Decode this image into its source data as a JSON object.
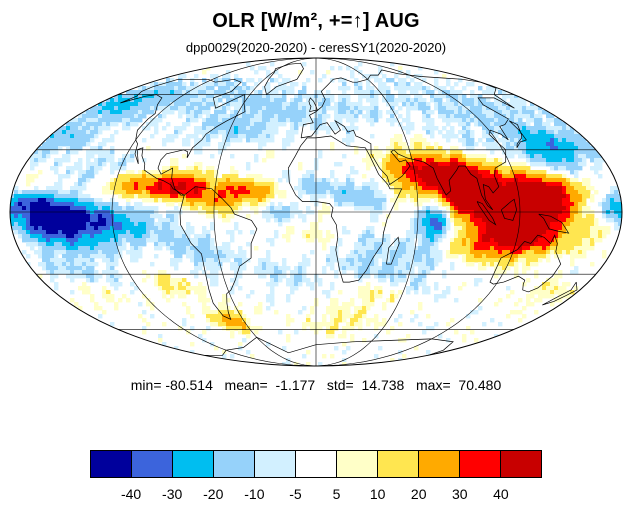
{
  "title": "OLR [W/m², +=↑] AUG",
  "subtitle": "dpp0029(2020-2020) - ceresSY1(2020-2020)",
  "stats": {
    "text": "min= -80.514   mean=  -1.177   std=  14.738   max=  70.480",
    "min": -80.514,
    "mean": -1.177,
    "std": 14.738,
    "max": 70.48
  },
  "map": {
    "projection": "mollweide",
    "field": "OLR difference",
    "palette": [
      "#00009c",
      "#3c64dc",
      "#00bef0",
      "#96d2fa",
      "#d2f0ff",
      "#ffffff",
      "#ffffc8",
      "#ffe650",
      "#ffaa00",
      "#ff0000",
      "#c80000"
    ]
  },
  "colorbar": {
    "colors": [
      "#00009c",
      "#3c64dc",
      "#00bef0",
      "#96d2fa",
      "#d2f0ff",
      "#ffffff",
      "#ffffc8",
      "#ffe650",
      "#ffaa00",
      "#ff0000",
      "#c80000"
    ],
    "tick_labels": [
      "-40",
      "-30",
      "-20",
      "-10",
      "-5",
      "5",
      "10",
      "20",
      "30",
      "40"
    ]
  }
}
